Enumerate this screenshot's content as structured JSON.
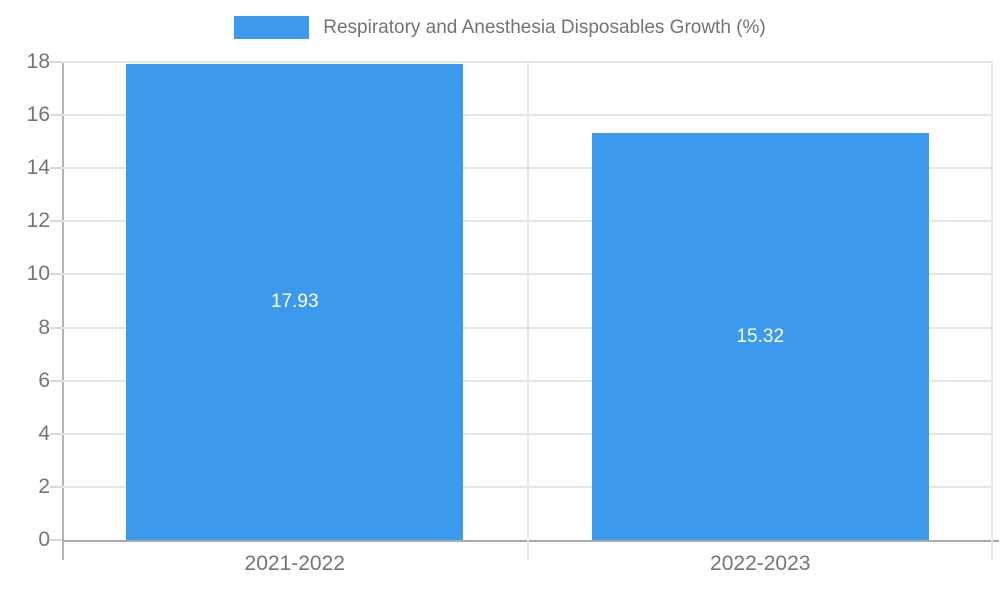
{
  "legend": {
    "label": "Respiratory and Anesthesia Disposables Growth (%)"
  },
  "chart_data": {
    "type": "bar",
    "title": "Respiratory and Anesthesia Disposables Growth (%)",
    "categories": [
      "2021-2022",
      "2022-2023"
    ],
    "values": [
      17.93,
      15.32
    ],
    "data_labels": [
      "17.93",
      "15.32"
    ],
    "xlabel": "",
    "ylabel": "",
    "ylim": [
      0,
      18
    ],
    "yticks": [
      0,
      2,
      4,
      6,
      8,
      10,
      12,
      14,
      16,
      18
    ],
    "grid": true,
    "legend_position": "top-center",
    "bar_color": "#3B9AED",
    "label_color": "#ffffff",
    "axis_text_color": "#757575",
    "gridline_color": "#e6e6e6",
    "axis_line_color": "#a9a9a9"
  }
}
